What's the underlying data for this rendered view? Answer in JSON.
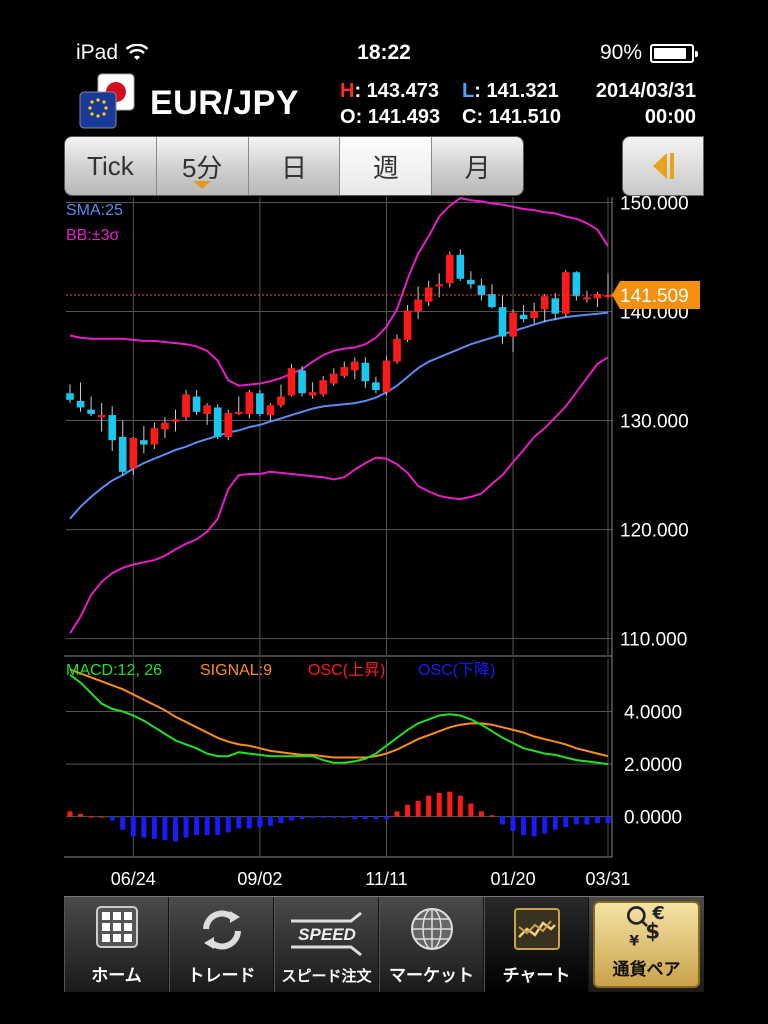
{
  "status": {
    "device": "iPad",
    "time": "18:22",
    "battery": "90%",
    "battery_level": 0.9
  },
  "header": {
    "pair": "EUR/JPY",
    "high_label": "H",
    "high": "143.473",
    "low_label": "L",
    "low": "141.321",
    "open_label": "O",
    "open": "141.493",
    "close_label": "C",
    "close": "141.510",
    "date": "2014/03/31",
    "time": "00:00"
  },
  "tabs": [
    {
      "label": "Tick"
    },
    {
      "label": "5分"
    },
    {
      "label": "日"
    },
    {
      "label": "週",
      "active": true
    },
    {
      "label": "月"
    }
  ],
  "indicators": {
    "sma_label": "SMA:25",
    "bb_label": "BB:±3σ"
  },
  "price_tag": "141.509",
  "macd_legend": {
    "macd": "MACD:12, 26",
    "signal": "SIGNAL:9",
    "osc_up": "OSC(上昇)",
    "osc_down": "OSC(下降)"
  },
  "colors": {
    "up": "#ff1a1a",
    "down": "#19c8f0",
    "sma": "#5b8cf0",
    "bb": "#e61ec8",
    "macd": "#22e022",
    "signal": "#ff8c1a",
    "osc_up": "#ff1a1a",
    "osc_down": "#1a1aff",
    "tag": "#f5900e"
  },
  "chart_data": [
    {
      "type": "candlestick",
      "x_ticks": [
        "06/24",
        "09/02",
        "11/11",
        "01/20",
        "03/31"
      ],
      "y_ticks": [
        "150.000",
        "140.000",
        "130.000",
        "120.000",
        "110.000"
      ],
      "ylim": [
        108.5,
        150.5
      ],
      "grid": true,
      "candles": [
        [
          132.5,
          133.3,
          131.6,
          131.9
        ],
        [
          131.8,
          133.5,
          130.8,
          131.2
        ],
        [
          131.0,
          132.2,
          130.4,
          130.6
        ],
        [
          130.3,
          131.6,
          129.0,
          130.5
        ],
        [
          130.5,
          131.3,
          127.2,
          128.2
        ],
        [
          128.5,
          130.0,
          125.0,
          125.3
        ],
        [
          125.6,
          128.5,
          125.0,
          128.4
        ],
        [
          128.2,
          129.5,
          127.0,
          127.8
        ],
        [
          127.8,
          129.8,
          127.4,
          129.3
        ],
        [
          129.2,
          130.3,
          128.4,
          129.8
        ],
        [
          129.9,
          131.0,
          129.0,
          130.1
        ],
        [
          130.3,
          132.8,
          130.0,
          132.4
        ],
        [
          132.2,
          132.8,
          130.5,
          130.8
        ],
        [
          130.6,
          131.6,
          129.6,
          131.4
        ],
        [
          131.2,
          131.5,
          128.3,
          128.5
        ],
        [
          128.5,
          131.0,
          128.2,
          130.7
        ],
        [
          130.7,
          132.2,
          130.5,
          130.8
        ],
        [
          130.6,
          132.8,
          130.2,
          132.6
        ],
        [
          132.5,
          132.8,
          130.4,
          130.6
        ],
        [
          130.5,
          131.6,
          130.0,
          131.4
        ],
        [
          131.4,
          133.3,
          131.2,
          132.2
        ],
        [
          132.3,
          135.2,
          132.2,
          134.8
        ],
        [
          134.6,
          135.0,
          132.2,
          132.5
        ],
        [
          132.3,
          133.5,
          132.0,
          132.6
        ],
        [
          132.4,
          134.1,
          132.2,
          133.7
        ],
        [
          133.4,
          134.8,
          133.2,
          134.3
        ],
        [
          134.1,
          135.4,
          133.9,
          134.9
        ],
        [
          134.6,
          135.8,
          133.8,
          135.4
        ],
        [
          135.3,
          135.8,
          133.0,
          133.6
        ],
        [
          133.5,
          134.0,
          132.5,
          132.8
        ],
        [
          132.6,
          135.9,
          132.3,
          135.5
        ],
        [
          135.4,
          137.9,
          135.2,
          137.5
        ],
        [
          137.4,
          140.6,
          137.2,
          140.1
        ],
        [
          140.0,
          142.3,
          139.3,
          141.1
        ],
        [
          140.9,
          142.8,
          140.5,
          142.2
        ],
        [
          142.3,
          143.5,
          141.3,
          142.5
        ],
        [
          142.6,
          145.5,
          142.2,
          145.2
        ],
        [
          145.2,
          145.7,
          142.8,
          143.0
        ],
        [
          142.9,
          143.7,
          142.1,
          142.5
        ],
        [
          142.4,
          143.0,
          141.0,
          141.5
        ],
        [
          141.6,
          142.5,
          140.3,
          140.4
        ],
        [
          140.4,
          141.5,
          137.0,
          137.7
        ],
        [
          137.7,
          140.2,
          136.3,
          139.9
        ],
        [
          139.7,
          140.6,
          139.0,
          139.3
        ],
        [
          139.4,
          140.8,
          138.9,
          140.0
        ],
        [
          140.2,
          141.6,
          139.0,
          141.4
        ],
        [
          141.2,
          141.7,
          139.2,
          139.8
        ],
        [
          139.8,
          143.8,
          139.5,
          143.6
        ],
        [
          143.6,
          143.7,
          141.0,
          141.4
        ],
        [
          141.2,
          141.9,
          140.8,
          141.3
        ],
        [
          141.2,
          141.8,
          140.4,
          141.6
        ],
        [
          141.5,
          143.5,
          141.2,
          141.5
        ]
      ],
      "sma": [
        121.0,
        122.1,
        123.0,
        123.8,
        124.5,
        125.0,
        125.6,
        126.1,
        126.5,
        126.9,
        127.3,
        127.6,
        128.0,
        128.3,
        128.6,
        128.9,
        129.1,
        129.4,
        129.6,
        129.9,
        130.2,
        130.5,
        130.8,
        131.1,
        131.3,
        131.4,
        131.5,
        131.6,
        131.8,
        132.1,
        132.6,
        133.2,
        134.0,
        134.8,
        135.4,
        135.8,
        136.2,
        136.6,
        137.0,
        137.3,
        137.6,
        137.9,
        138.2,
        138.5,
        138.8,
        139.1,
        139.3,
        139.5,
        139.6,
        139.7,
        139.8,
        139.9
      ],
      "bb_upper": [
        137.8,
        137.6,
        137.5,
        137.5,
        137.5,
        137.5,
        137.4,
        137.3,
        137.3,
        137.2,
        137.1,
        137.0,
        136.8,
        136.4,
        135.5,
        133.7,
        133.2,
        133.3,
        133.4,
        133.6,
        133.9,
        134.3,
        134.7,
        135.4,
        136.0,
        136.4,
        136.6,
        136.7,
        137.0,
        137.6,
        138.6,
        140.2,
        143.0,
        145.3,
        146.9,
        148.7,
        149.7,
        150.4,
        150.2,
        150.1,
        149.9,
        149.8,
        149.6,
        149.4,
        149.3,
        149.1,
        149.0,
        148.7,
        148.5,
        148.1,
        147.5,
        146.0
      ],
      "bb_lower": [
        110.5,
        112.0,
        114.0,
        115.2,
        116.0,
        116.5,
        116.8,
        117.0,
        117.2,
        117.6,
        118.2,
        118.7,
        119.1,
        119.8,
        121.0,
        123.7,
        125.0,
        125.1,
        125.1,
        125.3,
        125.2,
        125.1,
        125.0,
        124.9,
        124.8,
        124.6,
        124.8,
        125.5,
        126.1,
        126.6,
        126.5,
        126.0,
        125.2,
        124.0,
        123.5,
        123.1,
        122.9,
        122.8,
        123.0,
        123.3,
        124.2,
        125.0,
        126.2,
        127.3,
        128.5,
        129.3,
        130.3,
        131.3,
        132.6,
        133.9,
        135.2,
        135.8
      ],
      "macd": {
        "ylim": [
          -1.5,
          6.0
        ],
        "y_ticks": [
          "4.0000",
          "2.0000",
          "0.0000"
        ],
        "macd": [
          5.4,
          5.1,
          4.7,
          4.3,
          4.1,
          4.0,
          3.85,
          3.65,
          3.4,
          3.15,
          2.9,
          2.75,
          2.6,
          2.4,
          2.3,
          2.3,
          2.45,
          2.4,
          2.35,
          2.3,
          2.3,
          2.3,
          2.3,
          2.3,
          2.15,
          2.05,
          2.05,
          2.1,
          2.2,
          2.4,
          2.7,
          3.0,
          3.3,
          3.55,
          3.7,
          3.85,
          3.9,
          3.85,
          3.7,
          3.5,
          3.25,
          3.0,
          2.8,
          2.6,
          2.5,
          2.4,
          2.35,
          2.25,
          2.15,
          2.1,
          2.05,
          2.0
        ],
        "signal": [
          5.6,
          5.45,
          5.3,
          5.15,
          5.0,
          4.85,
          4.65,
          4.45,
          4.25,
          4.05,
          3.8,
          3.6,
          3.4,
          3.2,
          3.0,
          2.85,
          2.75,
          2.7,
          2.6,
          2.5,
          2.45,
          2.4,
          2.35,
          2.35,
          2.3,
          2.25,
          2.25,
          2.25,
          2.25,
          2.3,
          2.4,
          2.55,
          2.75,
          2.95,
          3.1,
          3.25,
          3.4,
          3.5,
          3.55,
          3.55,
          3.5,
          3.4,
          3.3,
          3.2,
          3.05,
          2.95,
          2.85,
          2.75,
          2.6,
          2.5,
          2.4,
          2.3
        ],
        "osc": [
          0.2,
          0.1,
          0.0,
          0.0,
          -0.15,
          -0.5,
          -0.75,
          -0.8,
          -0.85,
          -0.9,
          -0.95,
          -0.8,
          -0.7,
          -0.7,
          -0.7,
          -0.6,
          -0.45,
          -0.45,
          -0.4,
          -0.35,
          -0.25,
          -0.15,
          -0.1,
          -0.05,
          -0.05,
          -0.05,
          -0.05,
          -0.1,
          -0.1,
          -0.1,
          -0.1,
          0.2,
          0.45,
          0.6,
          0.8,
          0.9,
          0.95,
          0.8,
          0.5,
          0.2,
          0.05,
          -0.3,
          -0.55,
          -0.7,
          -0.75,
          -0.65,
          -0.5,
          -0.4,
          -0.3,
          -0.3,
          -0.25,
          -0.25
        ]
      }
    }
  ],
  "tabbar": [
    {
      "label": "ホーム",
      "icon": "grid-icon"
    },
    {
      "label": "トレード",
      "icon": "refresh-icon"
    },
    {
      "label": "スピード注文",
      "icon": "speed-icon",
      "badge": "SPEED"
    },
    {
      "label": "マーケット",
      "icon": "globe-icon"
    },
    {
      "label": "チャート",
      "icon": "chart-icon",
      "active": true
    },
    {
      "label": "通貨ペア",
      "icon": "currency-icon"
    }
  ]
}
